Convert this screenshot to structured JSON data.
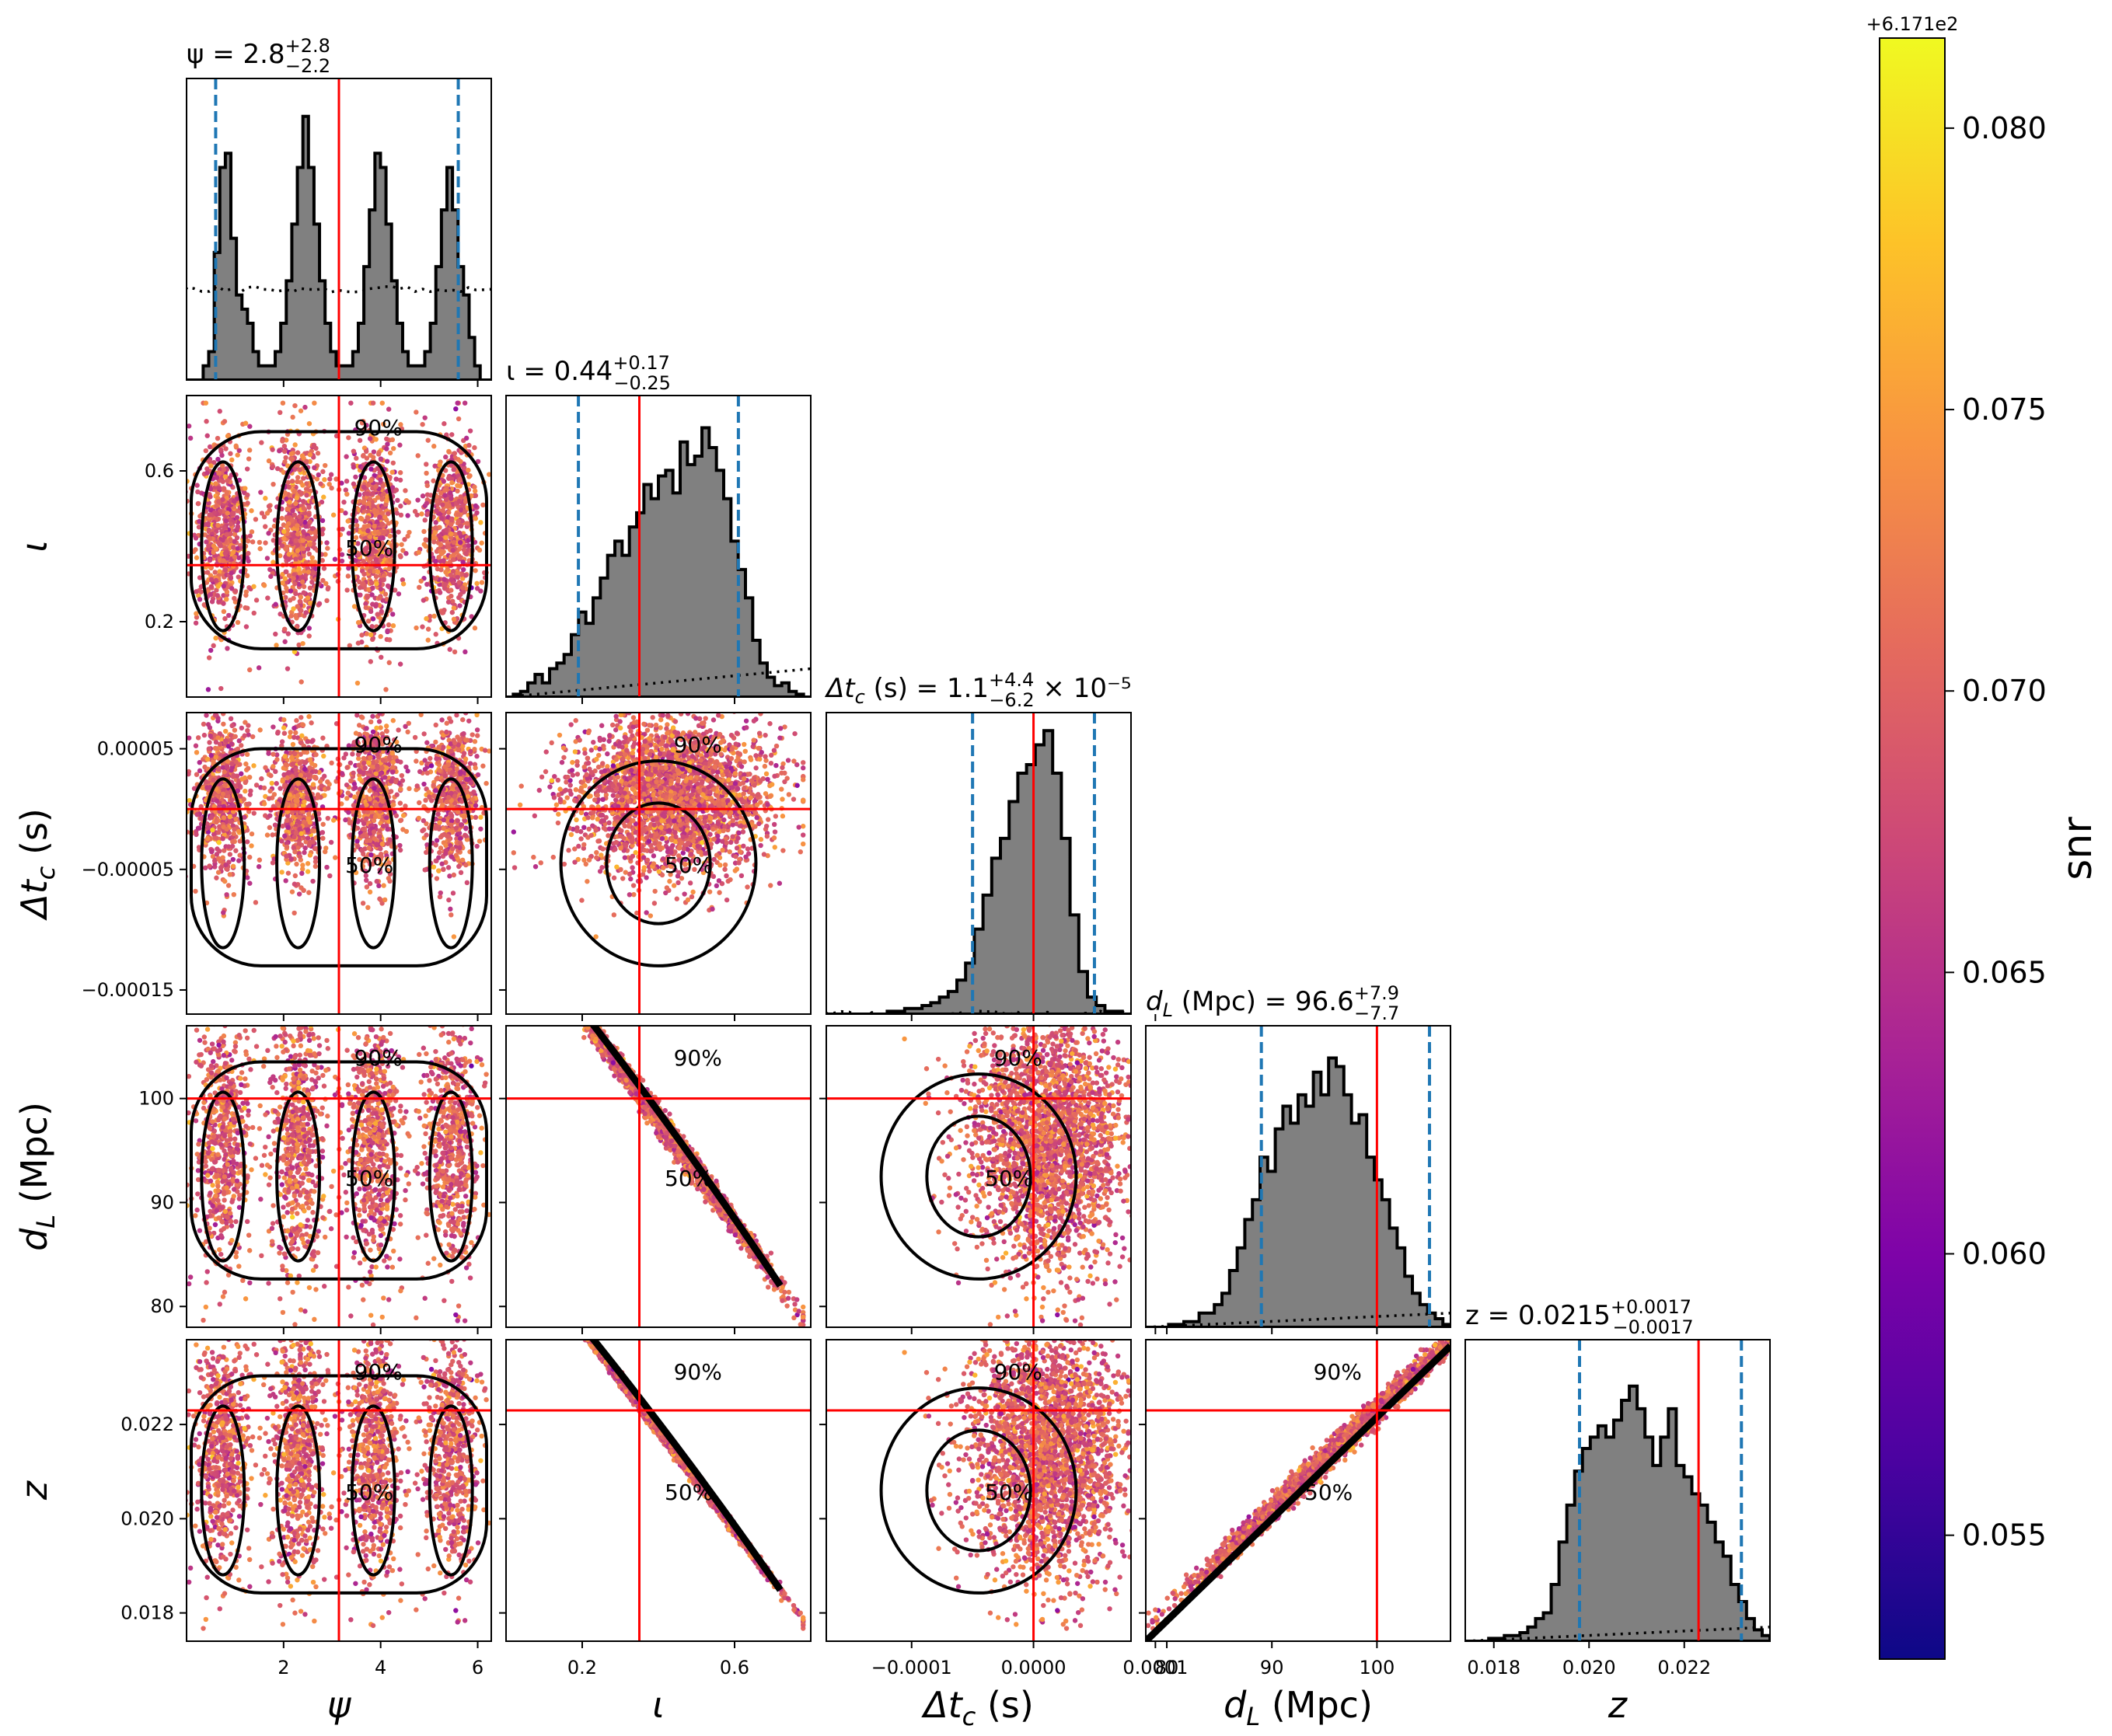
{
  "chart_data": {
    "type": "scatter",
    "title": "",
    "colorbar": {
      "label": "snr",
      "offset_label": "+6.171e2",
      "ticks": [
        "0.055",
        "0.060",
        "0.065",
        "0.070",
        "0.075",
        "0.080"
      ],
      "range": [
        0.0528,
        0.0816
      ],
      "colormap": "plasma"
    },
    "parameters": [
      {
        "key": "psi",
        "label": "ψ",
        "range": [
          0.0,
          6.28
        ],
        "ticks": [
          2,
          4,
          6
        ],
        "tick_labels": [
          "2",
          "4",
          "6"
        ],
        "injected": 3.14,
        "quantiles": [
          0.6,
          5.6
        ],
        "title": {
          "prefix": "ψ = ",
          "median": "2.8",
          "upper": "+2.8",
          "lower": "−2.2"
        }
      },
      {
        "key": "iota",
        "label": "ι",
        "range": [
          0.0,
          0.8
        ],
        "ticks": [
          0.2,
          0.6
        ],
        "tick_labels": [
          "0.2",
          "0.6"
        ],
        "injected": 0.35,
        "quantiles": [
          0.19,
          0.61
        ],
        "title": {
          "prefix": "ι = ",
          "median": "0.44",
          "upper": "+0.17",
          "lower": "−0.25"
        }
      },
      {
        "key": "dtc",
        "label": "Δt_c (s)",
        "range": [
          -0.00017,
          8e-05
        ],
        "ticks": [
          -0.00015,
          -5e-05,
          5e-05
        ],
        "tick_labels": [
          "−0.00015",
          "−0.00005",
          "0.00005"
        ],
        "xticks": [
          -0.0001,
          0.0,
          0.0001
        ],
        "xtick_labels": [
          "−0.0001",
          "0.0000",
          "0.0001"
        ],
        "injected": 0.0,
        "quantiles": [
          -5e-05,
          5e-05
        ],
        "title": {
          "prefix": "Δt_c (s) = ",
          "median": "1.1",
          "upper": "+4.4",
          "lower": "−6.2",
          "suffix": " × 10⁻⁵"
        }
      },
      {
        "key": "dL",
        "label": "d_L (Mpc)",
        "range": [
          78,
          107
        ],
        "ticks": [
          80,
          90,
          100
        ],
        "tick_labels": [
          "80",
          "90",
          "100"
        ],
        "injected": 100.0,
        "quantiles": [
          89,
          105
        ],
        "title": {
          "prefix": "d_L (Mpc) = ",
          "median": "96.6",
          "upper": "+7.9",
          "lower": "−7.7"
        }
      },
      {
        "key": "z",
        "label": "z",
        "range": [
          0.0174,
          0.0238
        ],
        "ticks": [
          0.018,
          0.02,
          0.022
        ],
        "tick_labels": [
          "0.018",
          "0.020",
          "0.022"
        ],
        "injected": 0.0223,
        "quantiles": [
          0.0198,
          0.0232
        ],
        "title": {
          "prefix": "z = ",
          "median": "0.0215",
          "upper": "+0.0017",
          "lower": "−0.0017"
        }
      }
    ],
    "histograms": {
      "psi": [
        0.0,
        0.0,
        0.0,
        0.05,
        0.1,
        0.45,
        0.75,
        0.8,
        0.5,
        0.3,
        0.25,
        0.2,
        0.1,
        0.05,
        0.05,
        0.05,
        0.1,
        0.2,
        0.35,
        0.55,
        0.75,
        0.93,
        0.75,
        0.55,
        0.35,
        0.2,
        0.1,
        0.05,
        0.05,
        0.05,
        0.1,
        0.2,
        0.4,
        0.6,
        0.8,
        0.75,
        0.55,
        0.35,
        0.2,
        0.1,
        0.05,
        0.05,
        0.05,
        0.1,
        0.2,
        0.4,
        0.6,
        0.75,
        0.6,
        0.4,
        0.3,
        0.15,
        0.05,
        0.0,
        0.0
      ],
      "iota": [
        0.0,
        0.01,
        0.02,
        0.05,
        0.08,
        0.05,
        0.1,
        0.12,
        0.15,
        0.22,
        0.3,
        0.26,
        0.35,
        0.42,
        0.5,
        0.55,
        0.5,
        0.6,
        0.65,
        0.75,
        0.7,
        0.78,
        0.8,
        0.72,
        0.9,
        0.82,
        0.85,
        0.95,
        0.88,
        0.8,
        0.7,
        0.55,
        0.45,
        0.35,
        0.2,
        0.12,
        0.07,
        0.04,
        0.05,
        0.02,
        0.01,
        0.0
      ],
      "dtc": [
        0.0,
        0.0,
        0.0,
        0.0,
        0.0,
        0.0,
        0.0,
        0.01,
        0.01,
        0.02,
        0.02,
        0.03,
        0.04,
        0.06,
        0.08,
        0.12,
        0.18,
        0.3,
        0.42,
        0.55,
        0.62,
        0.75,
        0.85,
        0.88,
        0.95,
        1.0,
        0.85,
        0.62,
        0.35,
        0.15,
        0.06,
        0.03,
        0.01,
        0.01,
        0.0
      ],
      "dL": [
        0.0,
        0.0,
        0.0,
        0.01,
        0.01,
        0.02,
        0.02,
        0.05,
        0.05,
        0.08,
        0.12,
        0.2,
        0.28,
        0.38,
        0.45,
        0.6,
        0.55,
        0.7,
        0.78,
        0.72,
        0.82,
        0.78,
        0.9,
        0.82,
        0.95,
        0.92,
        0.82,
        0.72,
        0.75,
        0.6,
        0.52,
        0.45,
        0.35,
        0.28,
        0.18,
        0.12,
        0.08,
        0.05,
        0.03,
        0.01
      ],
      "z": [
        0.0,
        0.0,
        0.0,
        0.01,
        0.01,
        0.02,
        0.02,
        0.03,
        0.05,
        0.08,
        0.1,
        0.2,
        0.35,
        0.48,
        0.6,
        0.68,
        0.72,
        0.76,
        0.72,
        0.78,
        0.85,
        0.9,
        0.82,
        0.72,
        0.62,
        0.72,
        0.82,
        0.62,
        0.58,
        0.52,
        0.48,
        0.42,
        0.35,
        0.3,
        0.2,
        0.14,
        0.08,
        0.04,
        0.02
      ]
    },
    "prior_levels": {
      "psi": 0.32,
      "iota": [
        0.0,
        0.1
      ],
      "dtc": 0.0,
      "dL": [
        0.0,
        0.05
      ],
      "z": [
        0.0,
        0.05
      ]
    },
    "contour_labels": [
      "50%",
      "90%"
    ]
  }
}
